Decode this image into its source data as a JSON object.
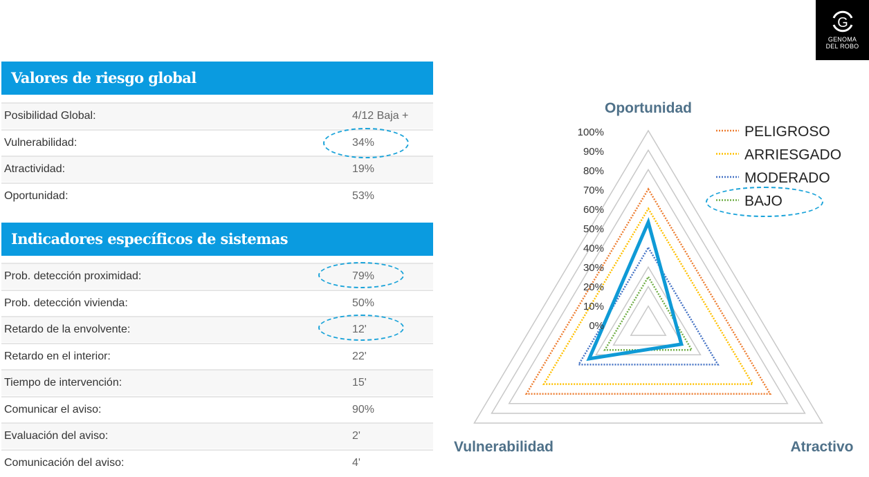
{
  "logo": {
    "line1": "GENOMA",
    "line2": "DEL ROBO"
  },
  "global": {
    "title": "Valores de riesgo global",
    "rows": [
      {
        "label": "Posibilidad Global:",
        "value": "4/12 Baja +"
      },
      {
        "label": "Vulnerabilidad:",
        "value": "34%"
      },
      {
        "label": "Atractividad:",
        "value": "19%"
      },
      {
        "label": "Oportunidad:",
        "value": "53%"
      }
    ]
  },
  "systems": {
    "title": "Indicadores específicos de sistemas",
    "rows": [
      {
        "label": "Prob. detección proximidad:",
        "value": "79%"
      },
      {
        "label": "Prob. detección vivienda:",
        "value": "50%"
      },
      {
        "label": "Retardo de la envolvente:",
        "value": "12'"
      },
      {
        "label": "Retardo en el interior:",
        "value": "22'"
      },
      {
        "label": "Tiempo de intervención:",
        "value": "15'"
      },
      {
        "label": "Comunicar el aviso:",
        "value": "90%"
      },
      {
        "label": "Evaluación del aviso:",
        "value": "2'"
      },
      {
        "label": "Comunicación del aviso:",
        "value": "4'"
      }
    ]
  },
  "chart_data": {
    "type": "radar",
    "axes": [
      "Oportunidad",
      "Atractivo",
      "Vulnerabilidad"
    ],
    "ticks": [
      "100%",
      "90%",
      "80%",
      "70%",
      "60%",
      "50%",
      "40%",
      "30%",
      "20%",
      "10%",
      "0%"
    ],
    "tick_values": [
      100,
      90,
      80,
      70,
      60,
      50,
      40,
      30,
      20,
      10,
      0
    ],
    "grid_rings": [
      10,
      20,
      30,
      80,
      90,
      100
    ],
    "range": [
      0,
      100
    ],
    "legend_position": "top-right",
    "series": [
      {
        "name": "PELIGROSO",
        "values": [
          70,
          70,
          70
        ],
        "color": "#ed7d31",
        "style": "dotted"
      },
      {
        "name": "ARRIESGADO",
        "values": [
          60,
          60,
          60
        ],
        "color": "#ffc000",
        "style": "dotted"
      },
      {
        "name": "MODERADO",
        "values": [
          40,
          40,
          40
        ],
        "color": "#4472c4",
        "style": "dotted"
      },
      {
        "name": "BAJO",
        "values": [
          25,
          25,
          25
        ],
        "color": "#70ad47",
        "style": "dotted"
      }
    ],
    "current": {
      "values": [
        53,
        19,
        34
      ],
      "color": "#0f9ad6"
    }
  },
  "annotation_color": "#1aa3d9"
}
